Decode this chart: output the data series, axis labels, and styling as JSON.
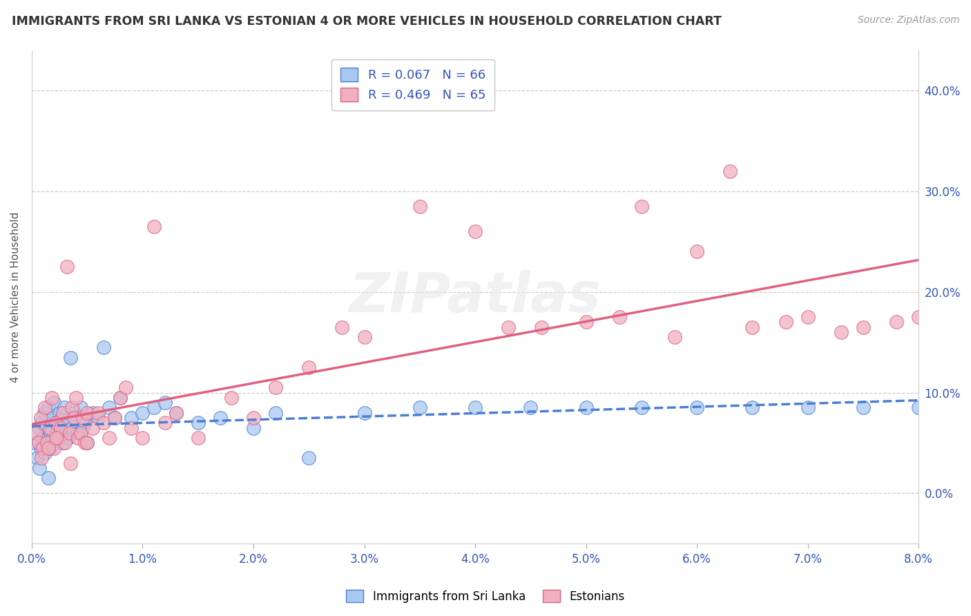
{
  "title": "IMMIGRANTS FROM SRI LANKA VS ESTONIAN 4 OR MORE VEHICLES IN HOUSEHOLD CORRELATION CHART",
  "source": "Source: ZipAtlas.com",
  "ylabel": "4 or more Vehicles in Household",
  "xlim": [
    0.0,
    8.0
  ],
  "ylim": [
    -5.0,
    44.0
  ],
  "xticks": [
    0.0,
    1.0,
    2.0,
    3.0,
    4.0,
    5.0,
    6.0,
    7.0,
    8.0
  ],
  "yticks": [
    0.0,
    10.0,
    20.0,
    30.0,
    40.0
  ],
  "blue_color": "#a8c8f0",
  "pink_color": "#f0b0c0",
  "blue_line_color": "#4a7fd4",
  "pink_line_color": "#e06080",
  "text_color": "#3355bb",
  "watermark": "ZIPatlas",
  "sri_lanka_x": [
    0.03,
    0.05,
    0.06,
    0.08,
    0.09,
    0.1,
    0.11,
    0.12,
    0.13,
    0.14,
    0.15,
    0.16,
    0.17,
    0.18,
    0.19,
    0.2,
    0.21,
    0.22,
    0.23,
    0.24,
    0.25,
    0.26,
    0.27,
    0.28,
    0.29,
    0.3,
    0.32,
    0.33,
    0.35,
    0.36,
    0.38,
    0.4,
    0.42,
    0.44,
    0.46,
    0.48,
    0.5,
    0.55,
    0.6,
    0.65,
    0.7,
    0.75,
    0.8,
    0.9,
    1.0,
    1.1,
    1.2,
    1.3,
    1.5,
    1.7,
    2.0,
    2.2,
    2.5,
    3.0,
    3.5,
    4.0,
    4.5,
    5.0,
    5.5,
    6.0,
    6.5,
    7.0,
    7.5,
    8.0,
    0.07,
    0.15
  ],
  "sri_lanka_y": [
    5.0,
    3.5,
    6.5,
    4.5,
    7.0,
    5.5,
    8.0,
    4.0,
    6.5,
    5.0,
    8.5,
    4.5,
    6.0,
    7.5,
    5.5,
    9.0,
    5.0,
    7.0,
    6.5,
    5.5,
    8.0,
    6.0,
    7.5,
    5.0,
    8.5,
    6.0,
    7.0,
    5.5,
    13.5,
    6.5,
    8.0,
    7.5,
    6.0,
    8.5,
    6.5,
    7.0,
    5.0,
    8.0,
    7.5,
    14.5,
    8.5,
    7.5,
    9.5,
    7.5,
    8.0,
    8.5,
    9.0,
    8.0,
    7.0,
    7.5,
    6.5,
    8.0,
    3.5,
    8.0,
    8.5,
    8.5,
    8.5,
    8.5,
    8.5,
    8.5,
    8.5,
    8.5,
    8.5,
    8.5,
    2.5,
    1.5
  ],
  "estonian_x": [
    0.04,
    0.06,
    0.08,
    0.1,
    0.12,
    0.14,
    0.16,
    0.18,
    0.2,
    0.22,
    0.24,
    0.26,
    0.28,
    0.3,
    0.32,
    0.34,
    0.36,
    0.38,
    0.4,
    0.42,
    0.44,
    0.46,
    0.48,
    0.5,
    0.55,
    0.6,
    0.65,
    0.7,
    0.75,
    0.8,
    0.85,
    0.9,
    1.0,
    1.1,
    1.2,
    1.3,
    1.5,
    1.8,
    2.0,
    2.2,
    2.5,
    2.8,
    3.0,
    3.5,
    4.0,
    4.3,
    4.6,
    5.0,
    5.3,
    5.5,
    5.8,
    6.0,
    6.3,
    6.5,
    6.8,
    7.0,
    7.3,
    7.5,
    7.8,
    8.0,
    0.09,
    0.15,
    0.22,
    0.35,
    0.5
  ],
  "estonian_y": [
    6.0,
    5.0,
    7.5,
    4.5,
    8.5,
    5.0,
    6.5,
    9.5,
    4.5,
    7.0,
    5.5,
    6.5,
    8.0,
    5.0,
    22.5,
    6.0,
    8.5,
    7.5,
    9.5,
    5.5,
    6.0,
    7.5,
    5.0,
    8.0,
    6.5,
    8.0,
    7.0,
    5.5,
    7.5,
    9.5,
    10.5,
    6.5,
    5.5,
    26.5,
    7.0,
    8.0,
    5.5,
    9.5,
    7.5,
    10.5,
    12.5,
    16.5,
    15.5,
    28.5,
    26.0,
    16.5,
    16.5,
    17.0,
    17.5,
    28.5,
    15.5,
    24.0,
    32.0,
    16.5,
    17.0,
    17.5,
    16.0,
    16.5,
    17.0,
    17.5,
    3.5,
    4.5,
    5.5,
    3.0,
    5.0
  ]
}
